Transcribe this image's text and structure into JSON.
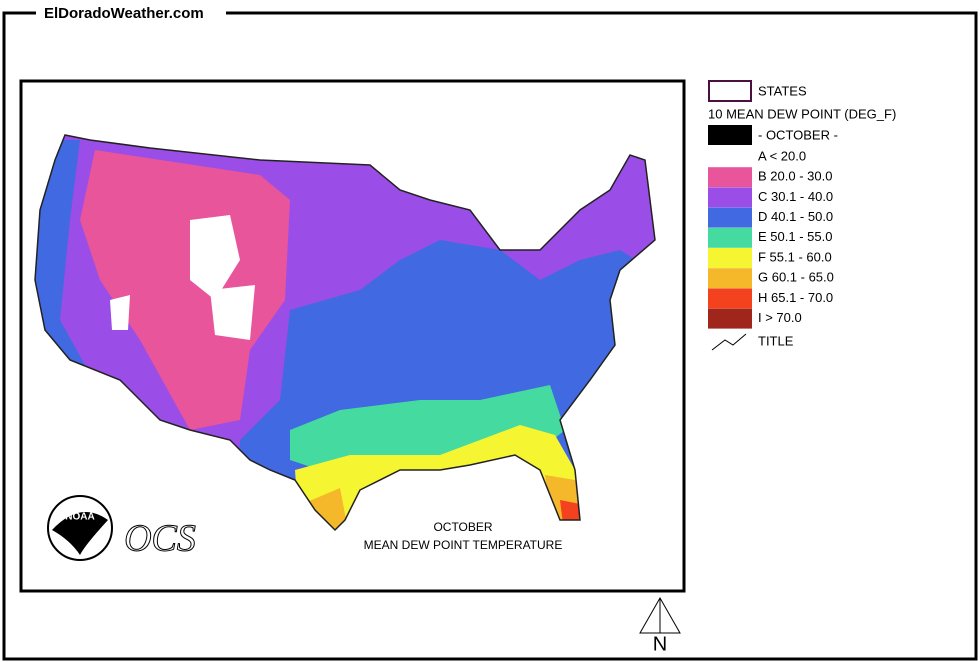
{
  "site_title": "ElDoradoWeather.com",
  "legend": {
    "states": "STATES",
    "layer": "10 MEAN DEW POINT (DEG_F)",
    "period": "- OCTOBER -",
    "classes": [
      {
        "label": "A < 20.0",
        "color": "#ffffff"
      },
      {
        "label": "B 20.0 - 30.0",
        "color": "#e8559a"
      },
      {
        "label": "C 30.1 - 40.0",
        "color": "#9b4de8"
      },
      {
        "label": "D 40.1 - 50.0",
        "color": "#4169e1"
      },
      {
        "label": "E 50.1 - 55.0",
        "color": "#45dba0"
      },
      {
        "label": "F 55.1 - 60.0",
        "color": "#f5f532"
      },
      {
        "label": "G 60.1 - 65.0",
        "color": "#f5b82a"
      },
      {
        "label": "H 65.1 - 70.0",
        "color": "#f5421e"
      },
      {
        "label": "I > 70.0",
        "color": "#a0261c"
      }
    ],
    "title": "TITLE"
  },
  "map": {
    "title_lines": [
      "OCTOBER",
      "MEAN DEW POINT TEMPERATURE"
    ],
    "logo": "NOAA",
    "ocs": "OCS"
  },
  "north": "N"
}
